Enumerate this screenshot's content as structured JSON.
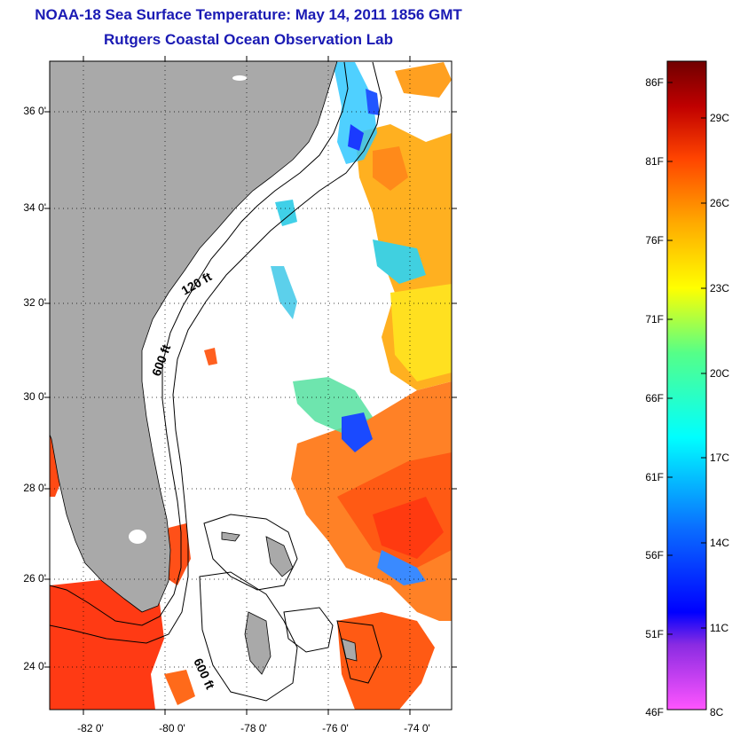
{
  "title": {
    "line1": "NOAA-18 Sea Surface Temperature:  May 14, 2011 1856 GMT",
    "line2": "Rutgers Coastal Ocean Observation Lab"
  },
  "map": {
    "lat_labels": [
      "36 0'",
      "34 0'",
      "32 0'",
      "30 0'",
      "28 0'",
      "26 0'",
      "24 0'"
    ],
    "lon_labels": [
      "-82 0'",
      "-80 0'",
      "-78 0'",
      "-76 0'",
      "-74 0'"
    ],
    "isobath_labels": [
      "120 ft",
      "600 ft",
      "600 ft"
    ],
    "colors": {
      "land": "#a9a9a9",
      "frame": "#000000",
      "grid": "#000000"
    }
  },
  "colorbar": {
    "fahrenheit_labels": [
      "86F",
      "81F",
      "76F",
      "71F",
      "66F",
      "61F",
      "56F",
      "51F",
      "46F"
    ],
    "celsius_labels": [
      "29C",
      "26C",
      "23C",
      "20C",
      "17C",
      "14C",
      "11C",
      "8C"
    ],
    "gradient_stops": [
      "#ff55ff",
      "#8a2be2",
      "#0000ff",
      "#0a6eff",
      "#00ffff",
      "#55ff88",
      "#ffff00",
      "#ffaa00",
      "#ff4400",
      "#c00000",
      "#700000"
    ]
  }
}
